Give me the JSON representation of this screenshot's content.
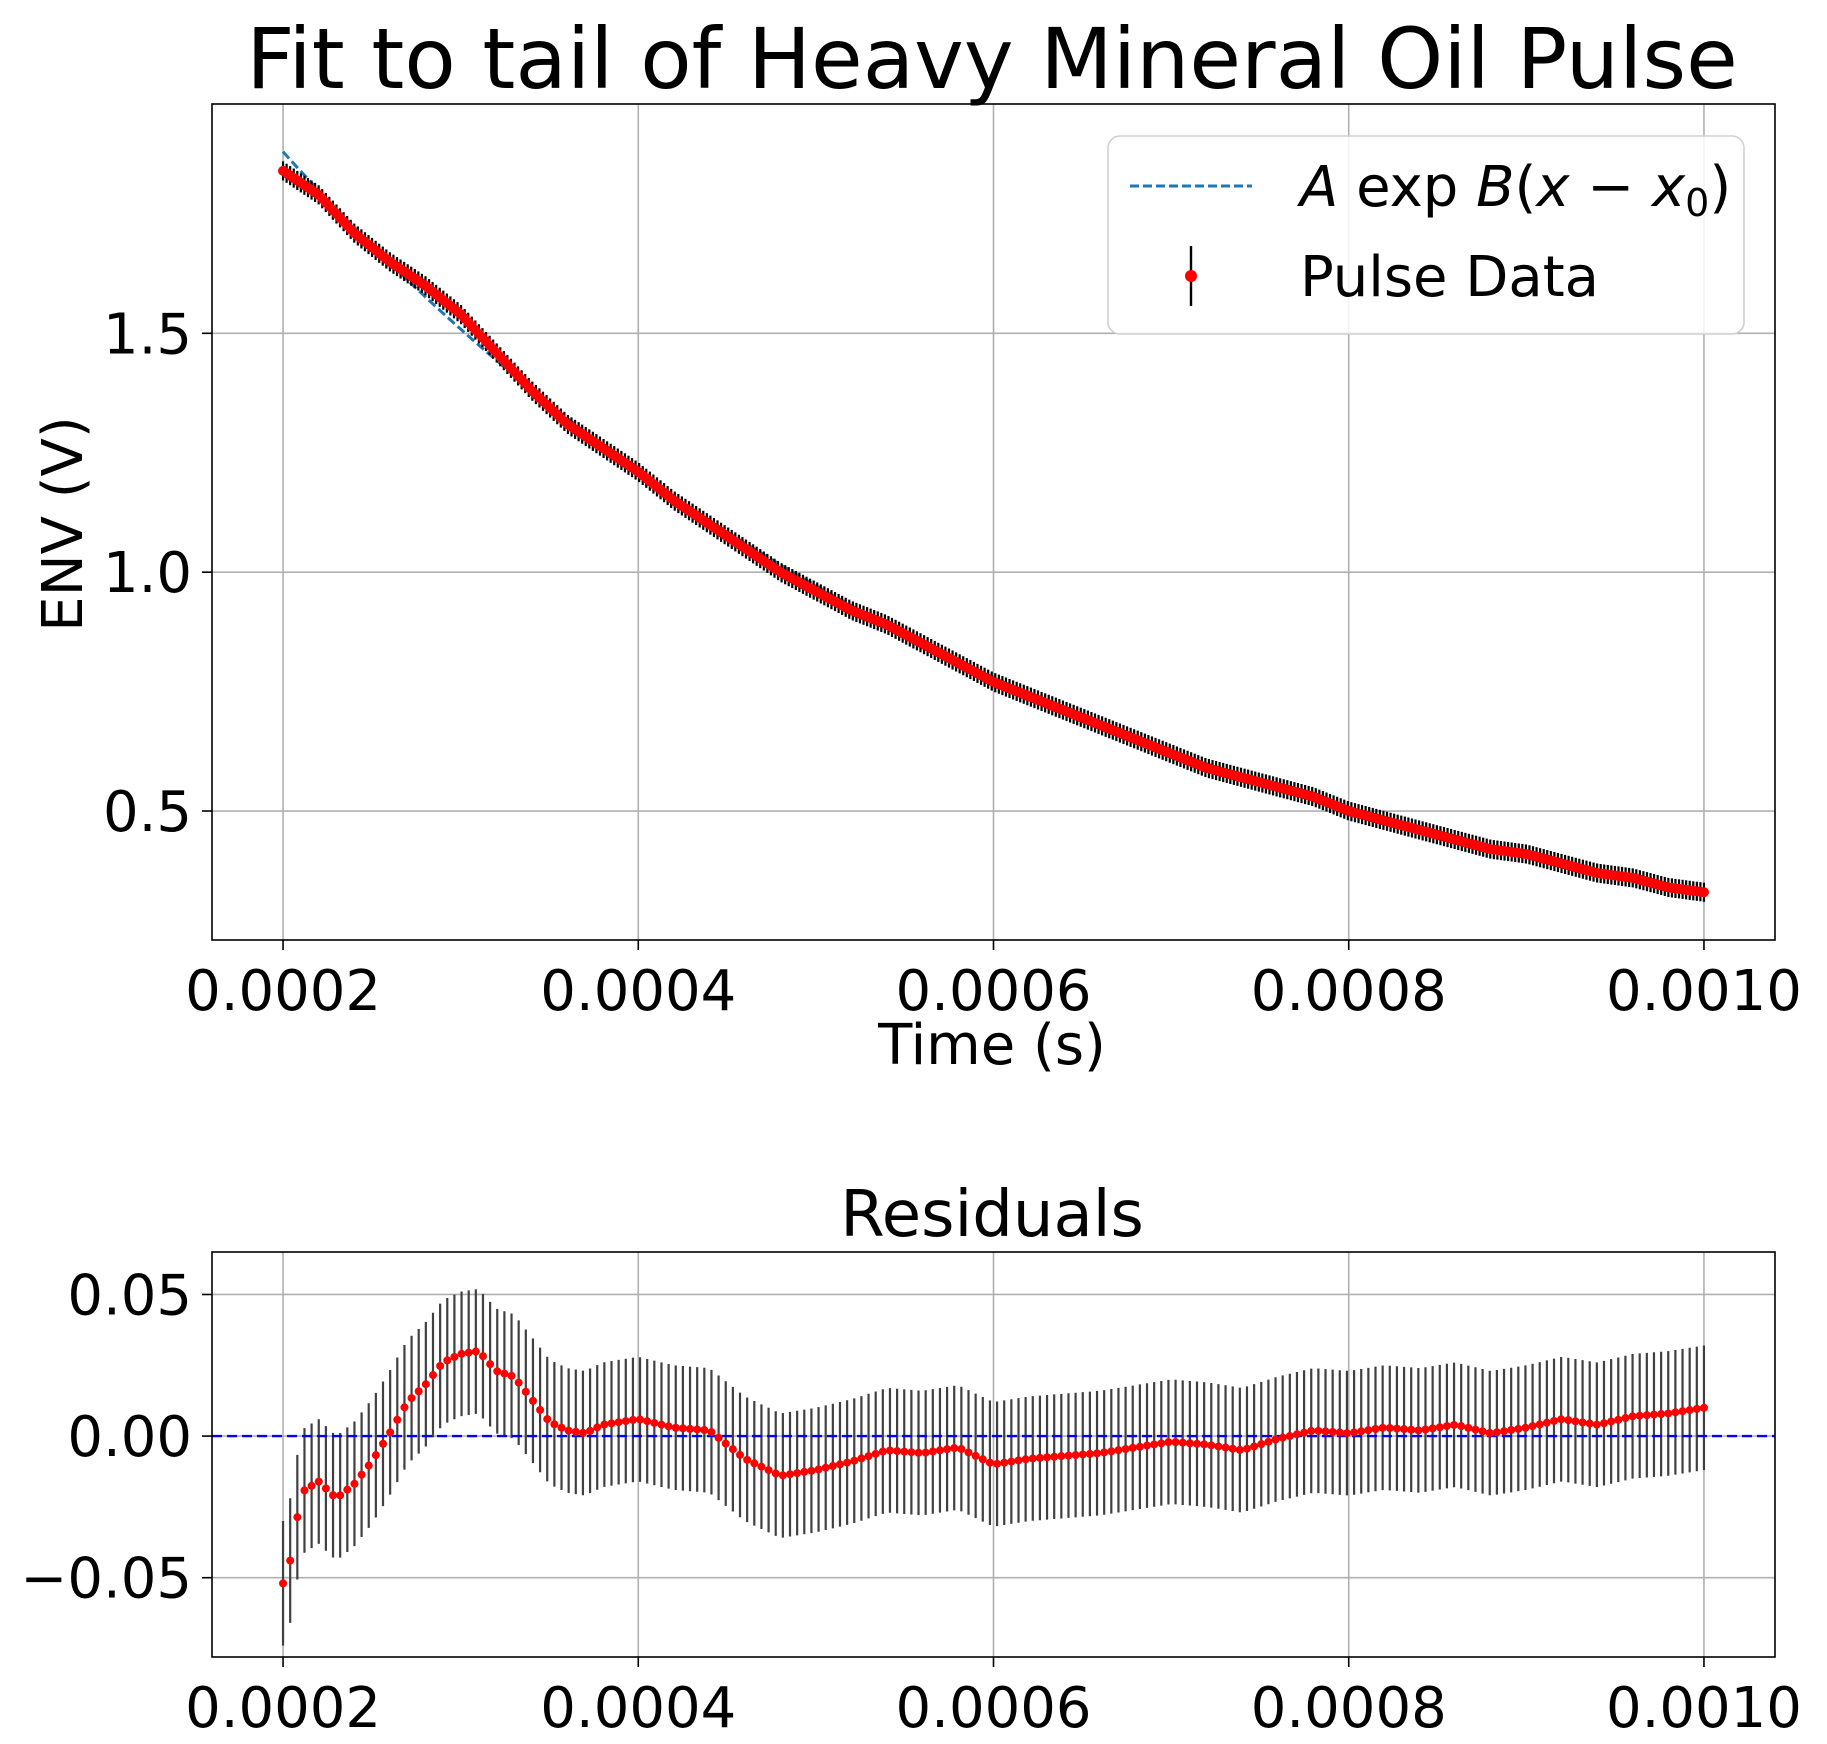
{
  "chart_data": [
    {
      "type": "scatter",
      "title": "Fit to tail of Heavy Mineral Oil Pulse",
      "xlabel": "Time (s)",
      "ylabel": "ENV (V)",
      "xlim": [
        0.00016,
        0.00104
      ],
      "ylim": [
        0.23,
        1.98
      ],
      "xticks": [
        0.0002,
        0.0004,
        0.0006,
        0.0008,
        0.001
      ],
      "xtick_labels": [
        "0.0002",
        "0.0004",
        "0.0006",
        "0.0008",
        "0.0010"
      ],
      "yticks": [
        0.5,
        1.0,
        1.5
      ],
      "ytick_labels": [
        "0.5",
        "1.0",
        "1.5"
      ],
      "grid": true,
      "legend": {
        "placement": "upper right",
        "entries": [
          {
            "label": "Aexp B(x − x₀)",
            "color": "#1f77b4",
            "style": "dashed"
          },
          {
            "label": "Pulse Data",
            "color": "#ff0000",
            "style": "point-with-errorbar"
          }
        ]
      },
      "fit": {
        "A": 1.88,
        "B": -2200,
        "x0": 0.0002,
        "x_range": [
          0.0002,
          0.001
        ]
      },
      "series": [
        {
          "name": "Pulse Data",
          "color": "#ff0000",
          "errorbar_color": "#000000",
          "yerr": 0.02,
          "x": [
            0.0002,
            0.00022,
            0.00024,
            0.00026,
            0.00028,
            0.0003,
            0.00032,
            0.00034,
            0.00036,
            0.00038,
            0.0004,
            0.00042,
            0.00044,
            0.00046,
            0.00048,
            0.0005,
            0.00052,
            0.00054,
            0.00056,
            0.00058,
            0.0006,
            0.00062,
            0.00064,
            0.00066,
            0.00068,
            0.0007,
            0.00072,
            0.00074,
            0.00076,
            0.00078,
            0.0008,
            0.00082,
            0.00084,
            0.00086,
            0.00088,
            0.0009,
            0.00092,
            0.00094,
            0.00096,
            0.00098,
            0.001
          ],
          "y": [
            1.84,
            1.79,
            1.71,
            1.65,
            1.6,
            1.54,
            1.46,
            1.38,
            1.31,
            1.26,
            1.21,
            1.15,
            1.1,
            1.05,
            1.0,
            0.96,
            0.92,
            0.89,
            0.85,
            0.81,
            0.77,
            0.74,
            0.71,
            0.68,
            0.65,
            0.62,
            0.59,
            0.57,
            0.55,
            0.53,
            0.5,
            0.48,
            0.46,
            0.44,
            0.42,
            0.41,
            0.39,
            0.37,
            0.36,
            0.34,
            0.33
          ]
        }
      ]
    },
    {
      "type": "scatter",
      "title": "Residuals",
      "xlabel": "",
      "ylabel": "",
      "xlim": [
        0.00016,
        0.00104
      ],
      "ylim": [
        -0.078,
        0.065
      ],
      "xticks": [
        0.0002,
        0.0004,
        0.0006,
        0.0008,
        0.001
      ],
      "xtick_labels": [
        "0.0002",
        "0.0004",
        "0.0006",
        "0.0008",
        "0.0010"
      ],
      "yticks": [
        0.05,
        0.0,
        -0.05
      ],
      "ytick_labels": [
        "0.05",
        "0.00",
        "−0.05"
      ],
      "grid": true,
      "zero_line": {
        "y": 0,
        "color": "#0000ff",
        "style": "dashed"
      },
      "series": [
        {
          "name": "Residuals",
          "color": "#ff0000",
          "errorbar_color": "#404040",
          "yerr": 0.022,
          "x": [
            0.0002,
            0.000205,
            0.00021,
            0.00022,
            0.00023,
            0.00024,
            0.00025,
            0.00026,
            0.00027,
            0.00028,
            0.00029,
            0.0003,
            0.00031,
            0.00032,
            0.00033,
            0.00034,
            0.00035,
            0.00036,
            0.00037,
            0.00038,
            0.0004,
            0.00042,
            0.00044,
            0.00046,
            0.00048,
            0.0005,
            0.00052,
            0.00054,
            0.00056,
            0.00058,
            0.0006,
            0.00062,
            0.00064,
            0.00066,
            0.00068,
            0.0007,
            0.00072,
            0.00074,
            0.00076,
            0.00078,
            0.0008,
            0.00082,
            0.00084,
            0.00086,
            0.00088,
            0.0009,
            0.00092,
            0.00094,
            0.00096,
            0.00098,
            0.001
          ],
          "y": [
            -0.052,
            -0.042,
            -0.02,
            -0.016,
            -0.022,
            -0.017,
            -0.009,
            0.001,
            0.012,
            0.018,
            0.026,
            0.029,
            0.03,
            0.023,
            0.021,
            0.013,
            0.005,
            0.002,
            0.001,
            0.004,
            0.006,
            0.003,
            0.002,
            -0.008,
            -0.014,
            -0.012,
            -0.009,
            -0.005,
            -0.006,
            -0.004,
            -0.01,
            -0.008,
            -0.007,
            -0.006,
            -0.004,
            -0.002,
            -0.003,
            -0.005,
            -0.001,
            0.002,
            0.001,
            0.003,
            0.002,
            0.004,
            0.001,
            0.003,
            0.006,
            0.004,
            0.007,
            0.008,
            0.01
          ]
        }
      ]
    }
  ]
}
